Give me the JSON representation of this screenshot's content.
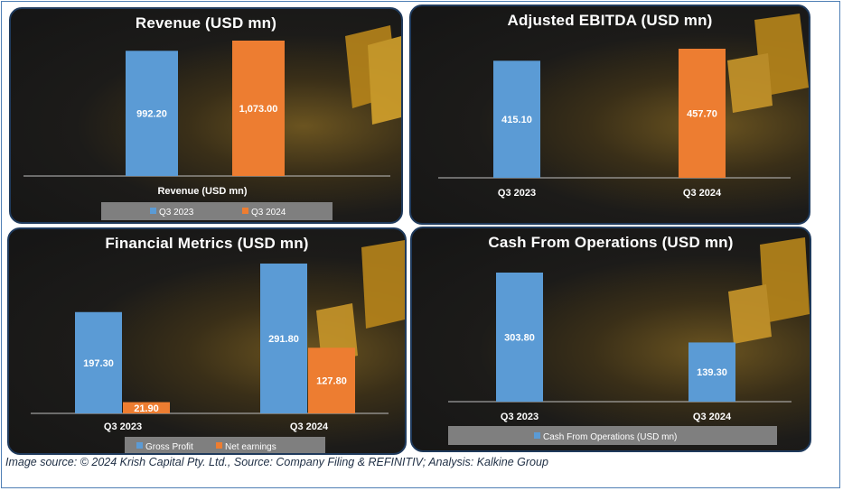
{
  "caption": "Image source: © 2024 Krish Capital Pty. Ltd., Source: Company Filing & REFINITIV; Analysis: Kalkine Group",
  "colors": {
    "blue": "#5b9bd5",
    "orange": "#ed7d31",
    "legend_bg": "#7f7f7f"
  },
  "chart_data": [
    {
      "id": "revenue",
      "type": "bar",
      "title": "Revenue (USD mn)",
      "categories": [
        "Revenue (USD mn)"
      ],
      "series": [
        {
          "name": "Q3 2023",
          "values": [
            992.2
          ],
          "labels": [
            "992.20"
          ]
        },
        {
          "name": "Q3 2024",
          "values": [
            1073.0
          ],
          "labels": [
            "1,073.00"
          ]
        }
      ],
      "legend": "bottom"
    },
    {
      "id": "ebitda",
      "type": "bar",
      "title": "Adjusted EBITDA (USD mn)",
      "categories": [
        "Q3 2023",
        "Q3 2024"
      ],
      "series": [
        {
          "values": [
            415.1,
            457.7
          ],
          "labels": [
            "415.10",
            "457.70"
          ],
          "colors": [
            "#5b9bd5",
            "#ed7d31"
          ]
        }
      ],
      "legend": "none"
    },
    {
      "id": "metrics",
      "type": "bar",
      "title": "Financial Metrics (USD mn)",
      "categories": [
        "Q3 2023",
        "Q3 2024"
      ],
      "series": [
        {
          "name": "Gross Profit",
          "values": [
            197.3,
            291.8
          ],
          "labels": [
            "197.30",
            "291.80"
          ]
        },
        {
          "name": "Net earnings",
          "values": [
            21.9,
            127.8
          ],
          "labels": [
            "21.90",
            "127.80"
          ]
        }
      ],
      "legend": "bottom"
    },
    {
      "id": "cfo",
      "type": "bar",
      "title": "Cash From Operations (USD mn)",
      "categories": [
        "Q3 2023",
        "Q3 2024"
      ],
      "series": [
        {
          "name": "Cash From Operations (USD mn)",
          "values": [
            303.8,
            139.3
          ],
          "labels": [
            "303.80",
            "139.30"
          ]
        }
      ],
      "legend": "bottom"
    }
  ]
}
